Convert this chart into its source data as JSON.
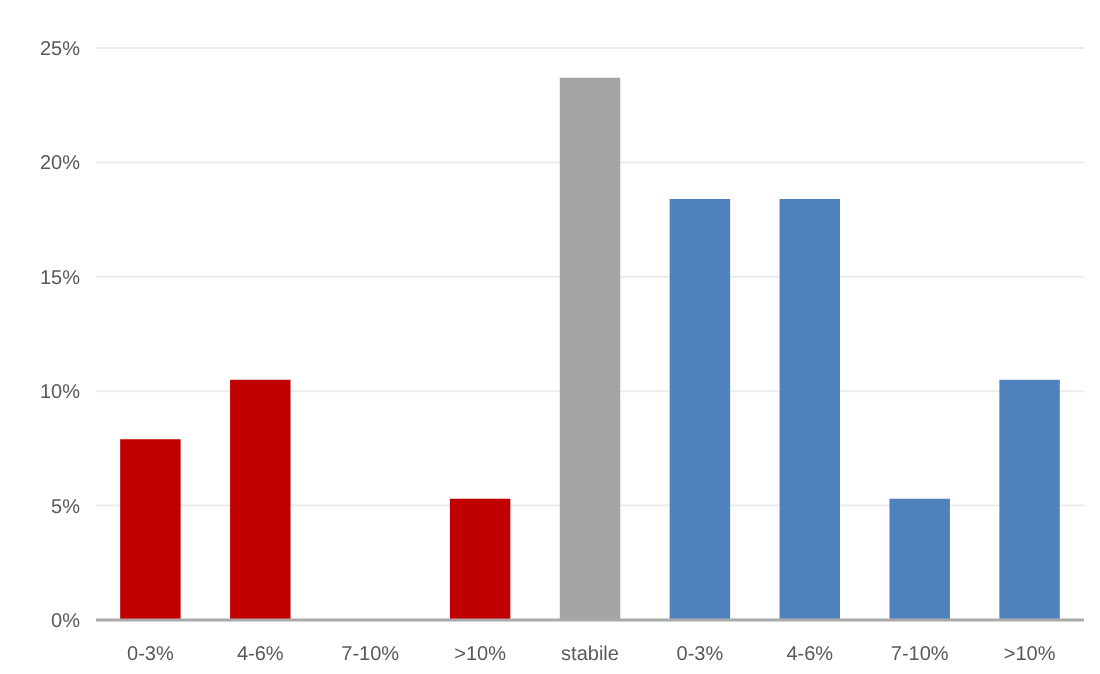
{
  "chart_data": {
    "type": "bar",
    "categories": [
      "0-3%",
      "4-6%",
      "7-10%",
      ">10%",
      "stabile",
      "0-3%",
      "4-6%",
      "7-10%",
      ">10%"
    ],
    "values": [
      7.9,
      10.5,
      0,
      5.3,
      23.7,
      18.4,
      18.4,
      5.3,
      10.5
    ],
    "colors": [
      "#c00000",
      "#c00000",
      "#c00000",
      "#c00000",
      "#a5a5a5",
      "#4f81bd",
      "#4f81bd",
      "#4f81bd",
      "#4f81bd"
    ],
    "ylim": [
      0,
      25
    ],
    "yticks": [
      {
        "value": 0,
        "label": "0%"
      },
      {
        "value": 5,
        "label": "5%"
      },
      {
        "value": 10,
        "label": "10%"
      },
      {
        "value": 15,
        "label": "15%"
      },
      {
        "value": 20,
        "label": "20%"
      },
      {
        "value": 25,
        "label": "25%"
      }
    ],
    "grid": "y"
  }
}
